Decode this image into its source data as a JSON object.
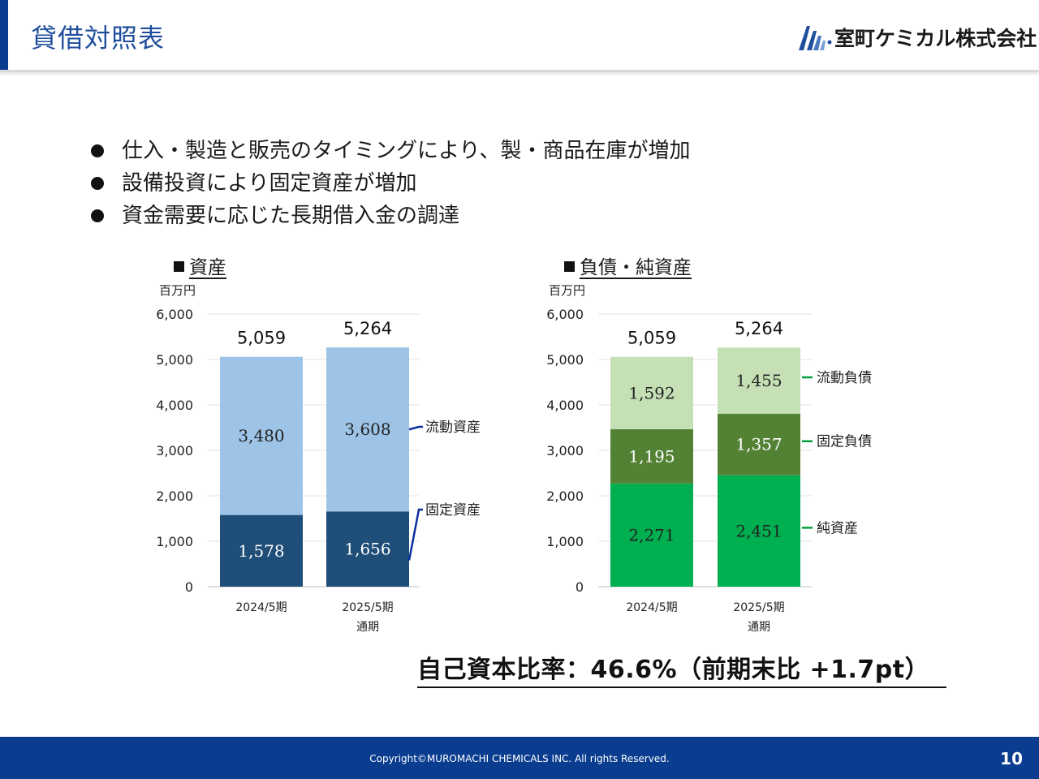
{
  "header": {
    "title": "貸借対照表",
    "company": "室町ケミカル株式会社"
  },
  "bullets": [
    "仕入・製造と販売のタイミングにより、製・商品在庫が増加",
    "設備投資により固定資産が増加",
    "資金需要に応じた長期借入金の調達"
  ],
  "chart_data": [
    {
      "type": "bar",
      "stacked": true,
      "title": "■資産",
      "ylabel": "百万円",
      "ylim": [
        0,
        6000
      ],
      "yticks": [
        "0",
        "1,000",
        "2,000",
        "3,000",
        "4,000",
        "5,000",
        "6,000"
      ],
      "categories": [
        "2024/5期",
        "2025/5期"
      ],
      "category_sublabels": [
        "",
        "通期"
      ],
      "totals": [
        5059,
        5264
      ],
      "series": [
        {
          "name": "固定資産",
          "values": [
            1578,
            1656
          ],
          "color": "#1f4e79",
          "label_color": "#ffffff"
        },
        {
          "name": "流動資産",
          "values": [
            3480,
            3608
          ],
          "color": "#9dc3e6",
          "label_color": "#222222"
        }
      ],
      "legend_line_color": "#0b2e9e",
      "grid": true,
      "legend": "right"
    },
    {
      "type": "bar",
      "stacked": true,
      "title": "■負債・純資産",
      "ylabel": "百万円",
      "ylim": [
        0,
        6000
      ],
      "yticks": [
        "0",
        "1,000",
        "2,000",
        "3,000",
        "4,000",
        "5,000",
        "6,000"
      ],
      "categories": [
        "2024/5期",
        "2025/5期"
      ],
      "category_sublabels": [
        "",
        "通期"
      ],
      "totals": [
        5059,
        5264
      ],
      "series": [
        {
          "name": "純資産",
          "values": [
            2271,
            2451
          ],
          "color": "#00b050",
          "label_color": "#222222"
        },
        {
          "name": "固定負債",
          "values": [
            1195,
            1357
          ],
          "color": "#548235",
          "label_color": "#ffffff"
        },
        {
          "name": "流動負債",
          "values": [
            1592,
            1455
          ],
          "color": "#c5e0b4",
          "label_color": "#222222"
        }
      ],
      "legend_line_color": "#00a03c",
      "grid": true,
      "legend": "right"
    }
  ],
  "summary": {
    "equity_ratio": "自己資本比率：46.6%（前期末比 +1.7pt）"
  },
  "footer": {
    "copyright": "Copyright©MUROMACHI CHEMICALS INC. All rights Reserved.",
    "page_number": "10"
  },
  "colors": {
    "brand_blue": "#0a3d8f",
    "title_blue": "#1f4e9c"
  }
}
